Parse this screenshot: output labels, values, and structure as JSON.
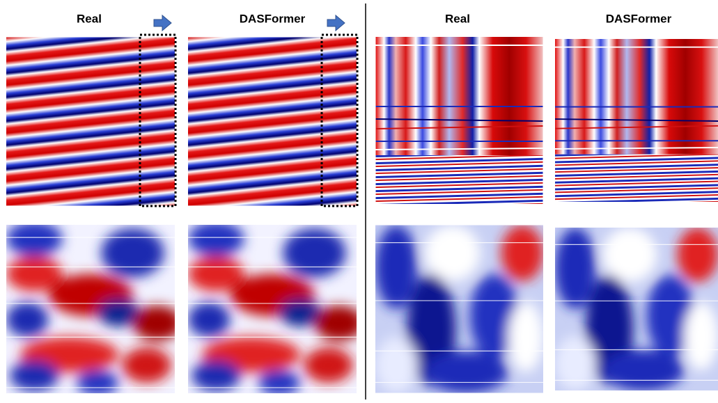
{
  "titles": [
    "Real",
    "DASFormer",
    "Real",
    "DASFormer"
  ]
}
